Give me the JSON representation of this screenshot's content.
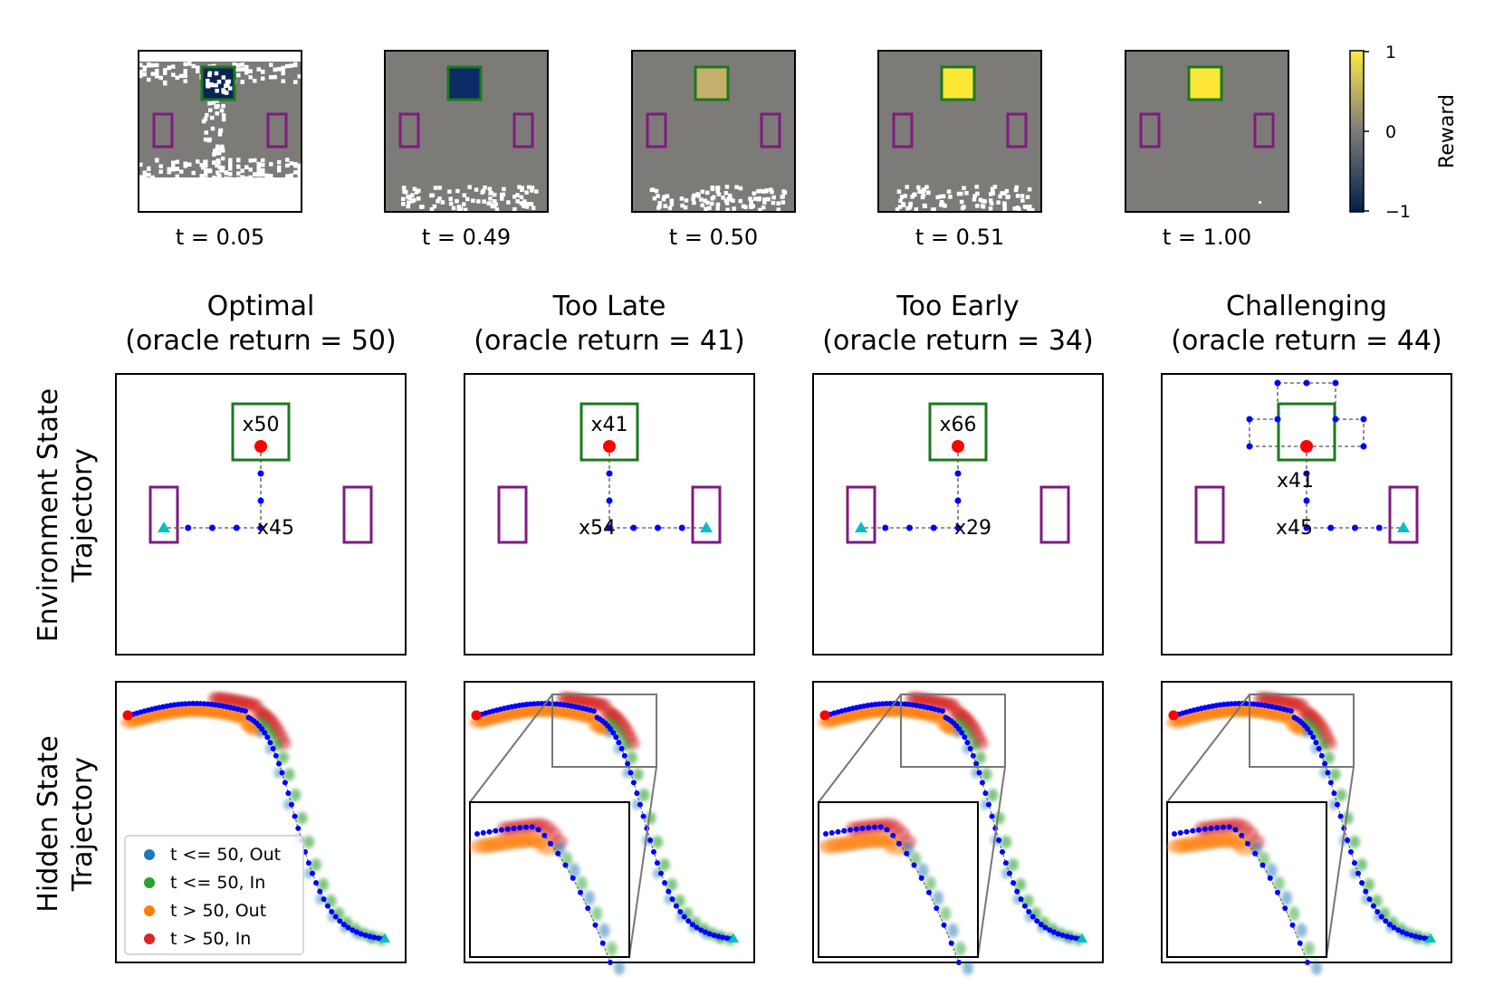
{
  "colorbar": {
    "label": "Reward",
    "ticks": [
      "1",
      "0",
      "−1"
    ],
    "cmap": [
      "#00204c",
      "#7c7b78",
      "#ffe945"
    ]
  },
  "top_row": {
    "panels": [
      {
        "caption": "t = 0.05",
        "goal_color": "#0a2456",
        "variant": "early"
      },
      {
        "caption": "t = 0.49",
        "goal_color": "#0c2a66",
        "variant": "mid"
      },
      {
        "caption": "t = 0.50",
        "goal_color": "#c5b06c",
        "variant": "mid"
      },
      {
        "caption": "t = 0.51",
        "goal_color": "#fde838",
        "variant": "mid"
      },
      {
        "caption": "t = 1.00",
        "goal_color": "#fde838",
        "variant": "late"
      }
    ]
  },
  "columns": [
    {
      "title1": "Optimal",
      "title2": "(oracle return = 50)"
    },
    {
      "title1": "Too Late",
      "title2": "(oracle return = 41)"
    },
    {
      "title1": "Too Early",
      "title2": "(oracle return = 34)"
    },
    {
      "title1": "Challenging",
      "title2": "(oracle return = 44)"
    }
  ],
  "row_labels": {
    "env": [
      "Environment State",
      "Trajectory"
    ],
    "hidden": [
      "Hidden State",
      "Trajectory"
    ]
  },
  "env_panels": [
    {
      "goal_label": "x50",
      "corner_label": "x45",
      "side": "left"
    },
    {
      "goal_label": "x41",
      "corner_label": "x54",
      "side": "right"
    },
    {
      "goal_label": "x66",
      "corner_label": "x29",
      "side": "left"
    },
    {
      "goal_label": "x41",
      "corner_label": "x45",
      "side": "right"
    }
  ],
  "legend": {
    "items": [
      {
        "label": "t <= 50, Out",
        "color": "#1f77b4"
      },
      {
        "label": "t <= 50, In",
        "color": "#2ca02c"
      },
      {
        "label": "t > 50, Out",
        "color": "#ff7f0e"
      },
      {
        "label": "t > 50, In",
        "color": "#d62728"
      }
    ]
  },
  "colors": {
    "goal_box": "#1a7a1a",
    "side_box": "#7f1a7f",
    "start": "#ff0000",
    "end": "#00c0c0",
    "path": "#0000ff"
  }
}
